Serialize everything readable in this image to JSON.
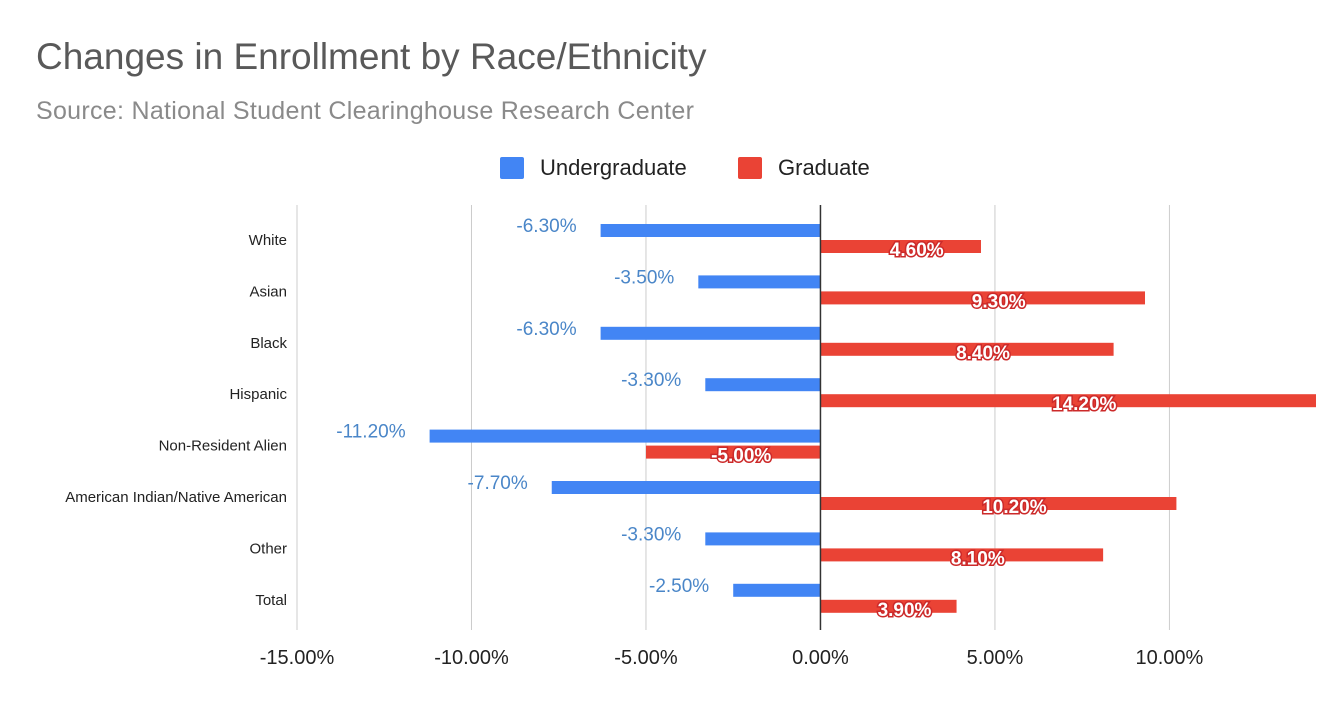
{
  "chart_data": {
    "type": "bar",
    "orientation": "horizontal",
    "title": "Changes in Enrollment by Race/Ethnicity",
    "subtitle": "Source: National Student Clearinghouse Research Center",
    "categories": [
      "White",
      "Asian",
      "Black",
      "Hispanic",
      "Non-Resident Alien",
      "American Indian/Native American",
      "Other",
      "Total"
    ],
    "series": [
      {
        "name": "Undergraduate",
        "color": "#4285f4",
        "values": [
          -6.3,
          -3.5,
          -6.3,
          -3.3,
          -11.2,
          -7.7,
          -3.3,
          -2.5
        ],
        "labels": [
          "-6.30%",
          "-3.50%",
          "-6.30%",
          "-3.30%",
          "-11.20%",
          "-7.70%",
          "-3.30%",
          "-2.50%"
        ]
      },
      {
        "name": "Graduate",
        "color": "#ea4335",
        "values": [
          4.6,
          9.3,
          8.4,
          14.2,
          -5.0,
          10.2,
          8.1,
          3.9
        ],
        "labels": [
          "4.60%",
          "9.30%",
          "8.40%",
          "14.20%",
          "-5.00%",
          "10.20%",
          "8.10%",
          "3.90%"
        ]
      }
    ],
    "xlim": [
      -15,
      14.2
    ],
    "xticks": [
      -15,
      -10,
      -5,
      0,
      5,
      10
    ],
    "xtick_labels": [
      "-15.00%",
      "-10.00%",
      "-5.00%",
      "0.00%",
      "5.00%",
      "10.00%"
    ],
    "grid": true,
    "legend_position": "top-center"
  }
}
